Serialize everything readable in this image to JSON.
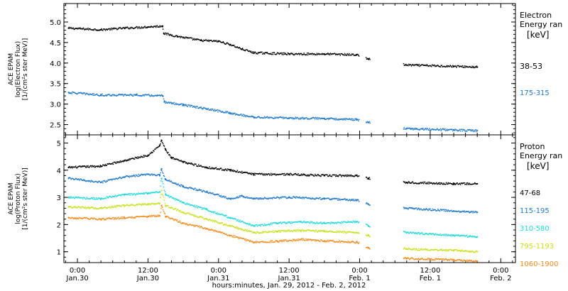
{
  "chart_data": {
    "type": "scatter",
    "xlabel": "hours:minutes, Jan. 29, 2012 - Feb. 2, 2012",
    "x_ticks": [
      {
        "hour": 0,
        "time": "0:00",
        "date": "Jan.30"
      },
      {
        "hour": 12,
        "time": "12:00",
        "date": "Jan.30"
      },
      {
        "hour": 24,
        "time": "0:00",
        "date": "Jan.31"
      },
      {
        "hour": 36,
        "time": "12:00",
        "date": "Jan.31"
      },
      {
        "hour": 48,
        "time": "0:00",
        "date": "Feb. 1"
      },
      {
        "hour": 60,
        "time": "12:00",
        "date": "Feb. 1"
      },
      {
        "hour": 72,
        "time": "0:00",
        "date": "Feb. 2"
      }
    ],
    "xlim": [
      -2.3,
      74.5
    ],
    "panels": [
      {
        "id": "electron",
        "ylabel": [
          "ACE EPAM",
          "log(Electron Flux)",
          "[1/(cm²s ster MeV)]"
        ],
        "ylim": [
          2.25,
          5.45
        ],
        "yticks": [
          2.5,
          3.0,
          3.5,
          4.0,
          4.5,
          5.0
        ],
        "ytick_labels": [
          "2.5",
          "3.0",
          "3.5",
          "4.0",
          "4.5",
          "5.0"
        ],
        "legend_title": [
          "Electron",
          "Energy ran"
        ],
        "legend_unit": "[keV]",
        "series": [
          {
            "name": "38-53",
            "color": "#000000",
            "points": [
              [
                -1.5,
                4.85
              ],
              [
                4,
                4.81
              ],
              [
                8,
                4.85
              ],
              [
                12,
                4.88
              ],
              [
                14.5,
                4.9
              ],
              [
                14.7,
                4.72
              ],
              [
                17,
                4.65
              ],
              [
                21,
                4.55
              ],
              [
                24,
                4.53
              ],
              [
                26,
                4.45
              ],
              [
                28,
                4.34
              ],
              [
                30,
                4.25
              ],
              [
                36,
                4.22
              ],
              [
                42,
                4.22
              ],
              [
                47.5,
                4.2
              ],
              [
                49.5,
                4.1
              ],
              [
                56,
                3.95
              ],
              [
                64,
                3.92
              ],
              [
                68,
                3.9
              ]
            ]
          },
          {
            "name": "175-315",
            "color": "#1f78c8",
            "points": [
              [
                -1.5,
                3.28
              ],
              [
                4,
                3.22
              ],
              [
                10,
                3.22
              ],
              [
                14.5,
                3.2
              ],
              [
                14.8,
                3.05
              ],
              [
                18,
                2.98
              ],
              [
                22,
                2.88
              ],
              [
                26,
                2.78
              ],
              [
                30,
                2.68
              ],
              [
                36,
                2.66
              ],
              [
                42,
                2.65
              ],
              [
                47.5,
                2.62
              ],
              [
                49.5,
                2.55
              ],
              [
                56,
                2.4
              ],
              [
                64,
                2.37
              ],
              [
                68,
                2.35
              ]
            ]
          }
        ]
      },
      {
        "id": "proton",
        "ylabel": [
          "ACE EPAM",
          "log(Proton Flux)",
          "[1/(cm²s ster MeV)]"
        ],
        "ylim": [
          0.6,
          5.3
        ],
        "yticks": [
          1,
          2,
          3,
          4,
          5
        ],
        "ytick_labels": [
          "1",
          "2",
          "3",
          "4",
          "5"
        ],
        "legend_title": [
          "Proton",
          "Energy ran"
        ],
        "legend_unit": "[keV]",
        "series": [
          {
            "name": "47-68",
            "color": "#000000",
            "points": [
              [
                -1.5,
                4.1
              ],
              [
                4,
                4.15
              ],
              [
                8,
                4.35
              ],
              [
                12,
                4.55
              ],
              [
                14,
                4.9
              ],
              [
                14.3,
                5.1
              ],
              [
                15,
                4.75
              ],
              [
                16,
                4.45
              ],
              [
                18,
                4.3
              ],
              [
                22,
                4.1
              ],
              [
                26,
                4.0
              ],
              [
                30,
                3.85
              ],
              [
                36,
                3.85
              ],
              [
                42,
                3.8
              ],
              [
                47.5,
                3.8
              ],
              [
                49.5,
                3.7
              ],
              [
                56,
                3.55
              ],
              [
                64,
                3.5
              ],
              [
                68,
                3.5
              ]
            ]
          },
          {
            "name": "115-195",
            "color": "#1f78c8",
            "points": [
              [
                -1.5,
                3.7
              ],
              [
                4,
                3.55
              ],
              [
                8,
                3.75
              ],
              [
                12,
                3.85
              ],
              [
                14,
                3.8
              ],
              [
                14.3,
                4.05
              ],
              [
                15,
                3.65
              ],
              [
                18,
                3.4
              ],
              [
                22,
                3.2
              ],
              [
                26,
                2.95
              ],
              [
                28,
                3.05
              ],
              [
                30,
                2.95
              ],
              [
                36,
                3.0
              ],
              [
                42,
                2.95
              ],
              [
                47.5,
                2.9
              ],
              [
                49.5,
                2.75
              ],
              [
                56,
                2.6
              ],
              [
                64,
                2.5
              ],
              [
                68,
                2.45
              ]
            ]
          },
          {
            "name": "310-580",
            "color": "#22d8d8",
            "points": [
              [
                -1.5,
                3.0
              ],
              [
                4,
                2.95
              ],
              [
                8,
                3.1
              ],
              [
                12,
                3.15
              ],
              [
                14,
                3.2
              ],
              [
                14.3,
                3.7
              ],
              [
                15,
                3.1
              ],
              [
                18,
                2.8
              ],
              [
                22,
                2.55
              ],
              [
                26,
                2.25
              ],
              [
                30,
                1.95
              ],
              [
                34,
                2.05
              ],
              [
                38,
                2.1
              ],
              [
                42,
                2.05
              ],
              [
                47.5,
                2.1
              ],
              [
                49.5,
                1.95
              ],
              [
                56,
                1.7
              ],
              [
                64,
                1.6
              ],
              [
                68,
                1.55
              ]
            ]
          },
          {
            "name": "795-1193",
            "color": "#c8e020",
            "points": [
              [
                -1.5,
                2.65
              ],
              [
                4,
                2.6
              ],
              [
                8,
                2.7
              ],
              [
                12,
                2.75
              ],
              [
                14,
                2.78
              ],
              [
                14.3,
                3.25
              ],
              [
                15,
                2.7
              ],
              [
                18,
                2.45
              ],
              [
                22,
                2.2
              ],
              [
                26,
                1.95
              ],
              [
                30,
                1.7
              ],
              [
                34,
                1.75
              ],
              [
                38,
                1.78
              ],
              [
                42,
                1.75
              ],
              [
                47.5,
                1.7
              ],
              [
                49.5,
                1.6
              ],
              [
                56,
                1.1
              ],
              [
                64,
                1.05
              ],
              [
                68,
                1.0
              ]
            ]
          },
          {
            "name": "1060-1900",
            "color": "#f08c1e",
            "points": [
              [
                -1.5,
                2.25
              ],
              [
                4,
                2.2
              ],
              [
                8,
                2.25
              ],
              [
                12,
                2.3
              ],
              [
                14,
                2.32
              ],
              [
                14.3,
                2.7
              ],
              [
                15,
                2.3
              ],
              [
                18,
                2.05
              ],
              [
                22,
                1.85
              ],
              [
                26,
                1.6
              ],
              [
                30,
                1.35
              ],
              [
                34,
                1.38
              ],
              [
                38,
                1.45
              ],
              [
                42,
                1.4
              ],
              [
                47.5,
                1.35
              ],
              [
                49.5,
                1.15
              ],
              [
                56,
                0.75
              ],
              [
                64,
                0.7
              ],
              [
                68,
                0.65
              ]
            ]
          }
        ]
      }
    ]
  }
}
